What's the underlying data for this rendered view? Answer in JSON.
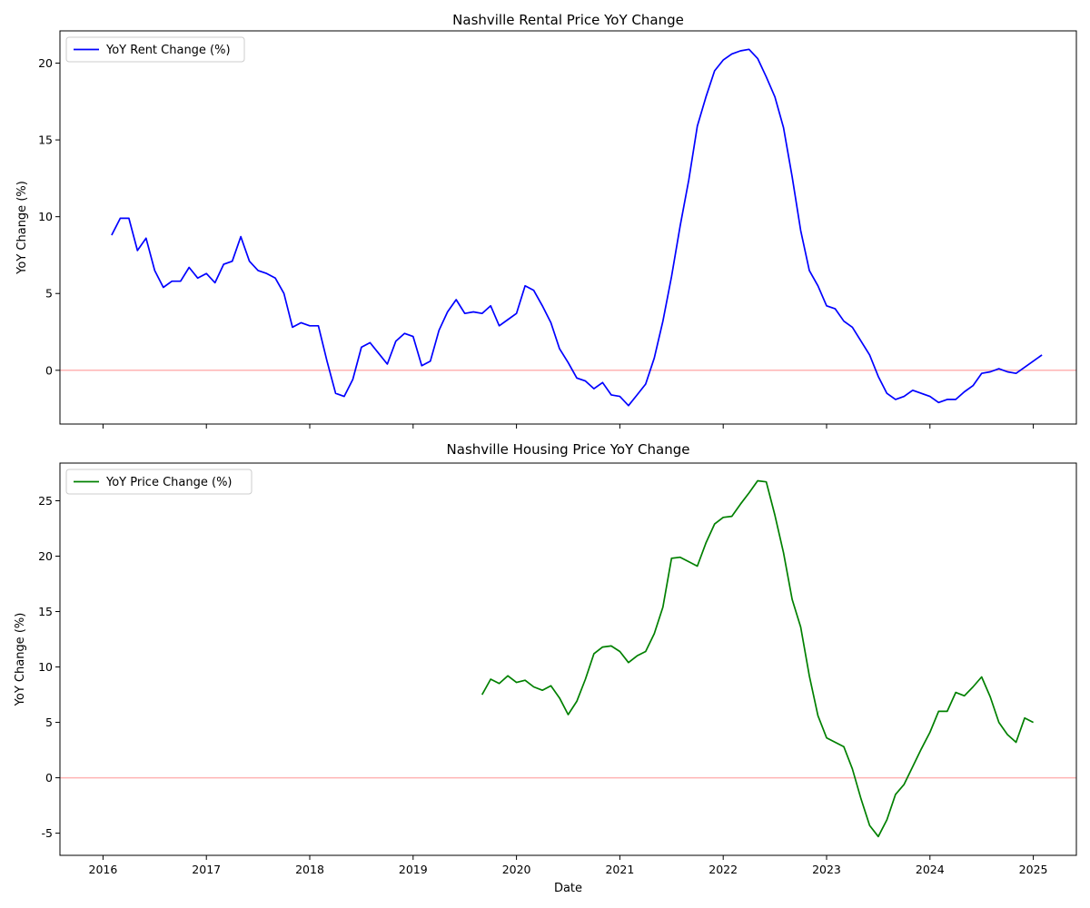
{
  "chart_data": [
    {
      "type": "line",
      "title": "Nashville Rental Price YoY Change",
      "xlabel": "",
      "ylabel": "YoY Change (%)",
      "ylim": [
        -3.5,
        22.1
      ],
      "xlim": [
        "2015-08",
        "2025-06"
      ],
      "x_ticks": [
        "2016",
        "2017",
        "2018",
        "2019",
        "2020",
        "2021",
        "2022",
        "2023",
        "2024",
        "2025"
      ],
      "y_ticks": [
        0,
        5,
        10,
        15,
        20
      ],
      "tick_labels_x_shown": false,
      "reference_line": {
        "y": 0,
        "color": "#ffb3b3"
      },
      "legend_position": "top-left",
      "grid": false,
      "series": [
        {
          "name": "YoY Rent Change (%)",
          "color": "#0000ff",
          "x": [
            "2016-02",
            "2016-03",
            "2016-04",
            "2016-05",
            "2016-06",
            "2016-07",
            "2016-08",
            "2016-09",
            "2016-10",
            "2016-11",
            "2016-12",
            "2017-01",
            "2017-02",
            "2017-03",
            "2017-04",
            "2017-05",
            "2017-06",
            "2017-07",
            "2017-08",
            "2017-09",
            "2017-10",
            "2017-11",
            "2017-12",
            "2018-01",
            "2018-02",
            "2018-03",
            "2018-04",
            "2018-05",
            "2018-06",
            "2018-07",
            "2018-08",
            "2018-09",
            "2018-10",
            "2018-11",
            "2018-12",
            "2019-01",
            "2019-02",
            "2019-03",
            "2019-04",
            "2019-05",
            "2019-06",
            "2019-07",
            "2019-08",
            "2019-09",
            "2019-10",
            "2019-11",
            "2019-12",
            "2020-01",
            "2020-02",
            "2020-03",
            "2020-04",
            "2020-05",
            "2020-06",
            "2020-07",
            "2020-08",
            "2020-09",
            "2020-10",
            "2020-11",
            "2020-12",
            "2021-01",
            "2021-02",
            "2021-03",
            "2021-04",
            "2021-05",
            "2021-06",
            "2021-07",
            "2021-08",
            "2021-09",
            "2021-10",
            "2021-11",
            "2021-12",
            "2022-01",
            "2022-02",
            "2022-03",
            "2022-04",
            "2022-05",
            "2022-06",
            "2022-07",
            "2022-08",
            "2022-09",
            "2022-10",
            "2022-11",
            "2022-12",
            "2023-01",
            "2023-02",
            "2023-03",
            "2023-04",
            "2023-05",
            "2023-06",
            "2023-07",
            "2023-08",
            "2023-09",
            "2023-10",
            "2023-11",
            "2023-12",
            "2024-01",
            "2024-02",
            "2024-03",
            "2024-04",
            "2024-05",
            "2024-06",
            "2024-07",
            "2024-08",
            "2024-09",
            "2024-10",
            "2024-11",
            "2024-12",
            "2025-01",
            "2025-02"
          ],
          "values": [
            8.8,
            9.9,
            9.9,
            7.8,
            8.6,
            6.5,
            5.4,
            5.8,
            5.8,
            6.7,
            6.0,
            6.3,
            5.7,
            6.9,
            7.1,
            8.7,
            7.1,
            6.5,
            6.3,
            6.0,
            5.0,
            2.8,
            3.1,
            2.9,
            2.9,
            0.6,
            -1.5,
            -1.7,
            -0.6,
            1.5,
            1.8,
            1.1,
            0.4,
            1.9,
            2.4,
            2.2,
            0.3,
            0.6,
            2.6,
            3.8,
            4.6,
            3.7,
            3.8,
            3.7,
            4.2,
            2.9,
            3.3,
            3.7,
            5.5,
            5.2,
            4.2,
            3.1,
            1.4,
            0.5,
            -0.5,
            -0.7,
            -1.2,
            -0.8,
            -1.6,
            -1.7,
            -2.3,
            -1.6,
            -0.9,
            0.8,
            3.2,
            6.1,
            9.4,
            12.4,
            15.9,
            17.8,
            19.5,
            20.2,
            20.6,
            20.8,
            20.9,
            20.3,
            19.1,
            17.8,
            15.8,
            12.6,
            9.1,
            6.5,
            5.5,
            4.2,
            4.0,
            3.2,
            2.8,
            1.9,
            1.0,
            -0.4,
            -1.5,
            -1.9,
            -1.7,
            -1.3,
            -1.5,
            -1.7,
            -2.1,
            -1.9,
            -1.9,
            -1.4,
            -1.0,
            -0.2,
            -0.1,
            0.1,
            -0.1,
            -0.2,
            0.2,
            0.6,
            1.0
          ]
        }
      ]
    },
    {
      "type": "line",
      "title": "Nashville Housing Price YoY Change",
      "xlabel": "Date",
      "ylabel": "YoY Change (%)",
      "ylim": [
        -7.0,
        28.4
      ],
      "xlim": [
        "2015-08",
        "2025-06"
      ],
      "x_ticks": [
        "2016",
        "2017",
        "2018",
        "2019",
        "2020",
        "2021",
        "2022",
        "2023",
        "2024",
        "2025"
      ],
      "y_ticks": [
        -5,
        0,
        5,
        10,
        15,
        20,
        25
      ],
      "reference_line": {
        "y": 0,
        "color": "#ffb3b3"
      },
      "legend_position": "top-left",
      "grid": false,
      "series": [
        {
          "name": "YoY Price Change (%)",
          "color": "#008000",
          "x": [
            "2019-09",
            "2019-10",
            "2019-11",
            "2019-12",
            "2020-01",
            "2020-02",
            "2020-03",
            "2020-04",
            "2020-05",
            "2020-06",
            "2020-07",
            "2020-08",
            "2020-09",
            "2020-10",
            "2020-11",
            "2020-12",
            "2021-01",
            "2021-02",
            "2021-03",
            "2021-04",
            "2021-05",
            "2021-06",
            "2021-07",
            "2021-08",
            "2021-09",
            "2021-10",
            "2021-11",
            "2021-12",
            "2022-01",
            "2022-02",
            "2022-03",
            "2022-04",
            "2022-05",
            "2022-06",
            "2022-07",
            "2022-08",
            "2022-09",
            "2022-10",
            "2022-11",
            "2022-12",
            "2023-01",
            "2023-02",
            "2023-03",
            "2023-04",
            "2023-05",
            "2023-06",
            "2023-07",
            "2023-08",
            "2023-09",
            "2023-10",
            "2023-11",
            "2023-12",
            "2024-01",
            "2024-02",
            "2024-03",
            "2024-04",
            "2024-05",
            "2024-06",
            "2024-07",
            "2024-08",
            "2024-09",
            "2024-10",
            "2024-11",
            "2024-12",
            "2025-01"
          ],
          "values": [
            7.5,
            8.9,
            8.5,
            9.2,
            8.6,
            8.8,
            8.2,
            7.9,
            8.3,
            7.2,
            5.7,
            6.9,
            8.9,
            11.2,
            11.8,
            11.9,
            11.4,
            10.4,
            11.0,
            11.4,
            13.0,
            15.4,
            19.8,
            19.9,
            19.5,
            19.1,
            21.2,
            22.9,
            23.5,
            23.6,
            24.7,
            25.7,
            26.8,
            26.7,
            23.7,
            20.3,
            16.1,
            13.6,
            9.2,
            5.6,
            3.6,
            3.2,
            2.8,
            0.8,
            -1.9,
            -4.3,
            -5.3,
            -3.8,
            -1.5,
            -0.6,
            1.0,
            2.6,
            4.1,
            6.0,
            6.0,
            7.7,
            7.4,
            8.2,
            9.1,
            7.3,
            5.0,
            3.9,
            3.2,
            5.4,
            5.0
          ]
        }
      ]
    }
  ]
}
